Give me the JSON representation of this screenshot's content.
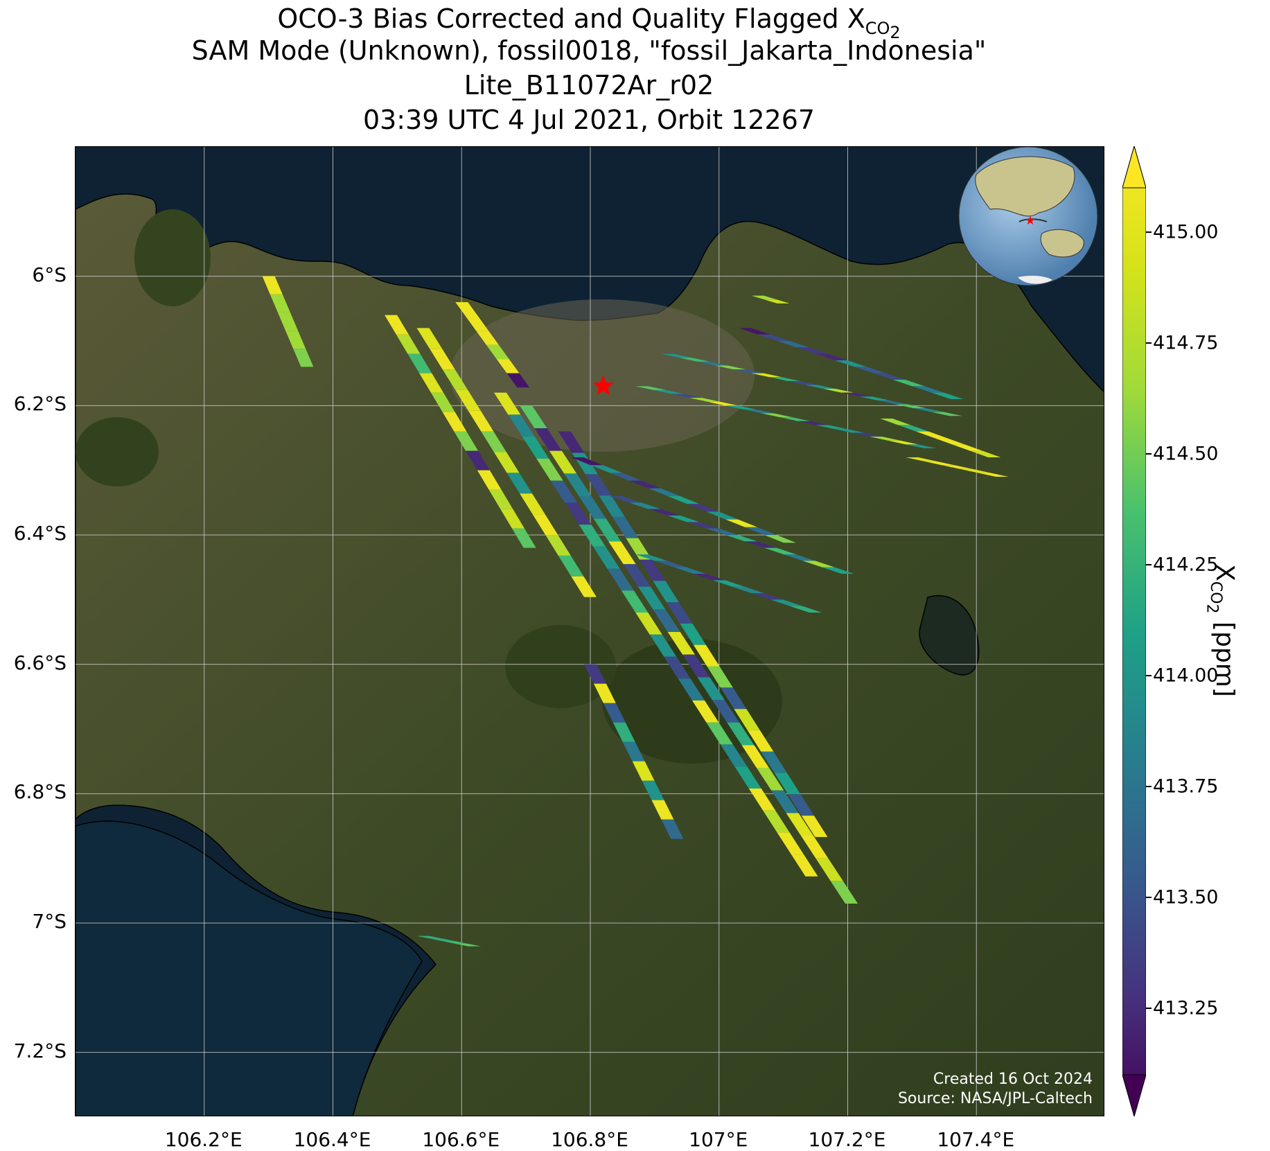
{
  "title": {
    "line1_prefix": "OCO-3 Bias Corrected and Quality Flagged X",
    "line1_sub": "CO",
    "line1_subsub": "2",
    "line2": "SAM Mode (Unknown), fossil0018, \"fossil_Jakarta_Indonesia\"",
    "line3": "Lite_B11072Ar_r02",
    "line4": "03:39 UTC 4 Jul 2021, Orbit 12267"
  },
  "map": {
    "lon_range": [
      106.0,
      107.6
    ],
    "lat_range": [
      -7.3,
      -5.8
    ],
    "lon_ticks": [
      {
        "v": 106.2,
        "label": "106.2°E"
      },
      {
        "v": 106.4,
        "label": "106.4°E"
      },
      {
        "v": 106.6,
        "label": "106.6°E"
      },
      {
        "v": 106.8,
        "label": "106.8°E"
      },
      {
        "v": 107.0,
        "label": "107°E"
      },
      {
        "v": 107.2,
        "label": "107.2°E"
      },
      {
        "v": 107.4,
        "label": "107.4°E"
      }
    ],
    "lat_ticks": [
      {
        "v": -6.0,
        "label": "6°S"
      },
      {
        "v": -6.2,
        "label": "6.2°S"
      },
      {
        "v": -6.4,
        "label": "6.4°S"
      },
      {
        "v": -6.6,
        "label": "6.6°S"
      },
      {
        "v": -6.8,
        "label": "6.8°S"
      },
      {
        "v": -7.0,
        "label": "7°S"
      },
      {
        "v": -7.2,
        "label": "7.2°S"
      }
    ],
    "target_marker": {
      "lon": 106.82,
      "lat": -6.17,
      "color": "#ff0000"
    },
    "grid": true
  },
  "credits": {
    "line1": "Created 16 Oct 2024",
    "line2": "Source: NASA/JPL-Caltech"
  },
  "colorbar": {
    "label_prefix": "X",
    "label_sub": "CO",
    "label_subsub": "2",
    "label_suffix": " [ppm]",
    "range": [
      413.1,
      415.1
    ],
    "colormap": "viridis",
    "extend": "both",
    "ticks": [
      "413.25",
      "413.50",
      "413.75",
      "414.00",
      "414.25",
      "414.50",
      "414.75",
      "415.00"
    ]
  },
  "chart_data": {
    "type": "heatmap",
    "note_units": "XCO2 ppm",
    "swaths": [
      {
        "lon0": 106.3,
        "lat0": -6.0,
        "dlon": 0.012,
        "dlat": -0.028,
        "values": [
          415.0,
          414.6,
          414.6,
          414.6,
          414.5
        ]
      },
      {
        "lon0": 106.49,
        "lat0": -6.06,
        "dlon": 0.018,
        "dlat": -0.03,
        "values": [
          415.0,
          414.7,
          414.3,
          414.9,
          414.6,
          415.0,
          414.5,
          413.3,
          415.0,
          414.7,
          414.8,
          414.4
        ]
      },
      {
        "lon0": 106.54,
        "lat0": -6.08,
        "dlon": 0.02,
        "dlat": -0.032,
        "values": [
          414.9,
          415.0,
          414.7,
          414.9,
          415.0,
          414.5,
          414.8,
          414.0,
          414.9,
          415.0,
          414.7,
          414.3,
          415.0
        ]
      },
      {
        "lon0": 106.6,
        "lat0": -6.04,
        "dlon": 0.016,
        "dlat": -0.022,
        "values": [
          415.0,
          415.0,
          415.0,
          414.6,
          415.0,
          413.2
        ]
      },
      {
        "lon0": 106.66,
        "lat0": -6.18,
        "dlon": 0.022,
        "dlat": -0.034,
        "values": [
          414.9,
          413.9,
          414.1,
          414.5,
          413.6,
          413.4,
          414.2,
          414.0,
          413.7,
          414.3,
          414.8,
          414.0,
          413.5,
          413.8,
          415.0,
          414.4,
          413.9,
          414.1,
          415.0,
          414.7,
          415.0,
          415.0
        ]
      },
      {
        "lon0": 106.7,
        "lat0": -6.2,
        "dlon": 0.023,
        "dlat": -0.035,
        "values": [
          414.4,
          413.3,
          414.8,
          413.9,
          413.8,
          414.2,
          415.0,
          413.5,
          414.0,
          413.7,
          414.9,
          413.4,
          414.0,
          413.6,
          414.2,
          415.0,
          414.6,
          413.8,
          414.9,
          415.0,
          414.8,
          414.5
        ]
      },
      {
        "lon0": 106.76,
        "lat0": -6.24,
        "dlon": 0.021,
        "dlat": -0.033,
        "values": [
          413.3,
          414.0,
          413.5,
          413.9,
          413.7,
          414.6,
          413.4,
          414.0,
          413.5,
          414.1,
          415.0,
          414.5,
          413.6,
          414.8,
          415.0,
          413.8,
          414.1,
          413.6,
          415.0
        ]
      },
      {
        "lon0": 106.8,
        "lat0": -6.6,
        "dlon": 0.015,
        "dlat": -0.03,
        "values": [
          413.4,
          415.0,
          413.6,
          414.2,
          413.8,
          414.9,
          414.0,
          415.0,
          413.7
        ]
      },
      {
        "lon0": 106.78,
        "lat0": -6.28,
        "dlon": 0.03,
        "dlat": -0.012,
        "values": [
          413.2,
          414.0,
          413.6,
          413.3,
          413.8,
          414.1,
          413.4,
          414.0,
          415.0,
          413.7,
          414.5
        ]
      },
      {
        "lon0": 106.84,
        "lat0": -6.34,
        "dlon": 0.03,
        "dlat": -0.01,
        "values": [
          413.5,
          413.9,
          413.3,
          414.1,
          413.4,
          413.7,
          414.2,
          413.3,
          414.3,
          413.8,
          414.6,
          414.1
        ]
      },
      {
        "lon0": 106.88,
        "lat0": -6.43,
        "dlon": 0.03,
        "dlat": -0.01,
        "values": [
          414.0,
          413.6,
          413.8,
          413.3,
          414.1,
          413.9,
          413.4,
          414.0,
          414.2
        ]
      },
      {
        "lon0": 106.88,
        "lat0": -6.17,
        "dlon": 0.028,
        "dlat": -0.006,
        "values": [
          414.4,
          414.0,
          413.5,
          414.6,
          415.0,
          414.1,
          413.8,
          414.5,
          414.3,
          413.3,
          414.1,
          414.0,
          413.4,
          414.6,
          414.9,
          414.0
        ]
      },
      {
        "lon0": 106.92,
        "lat0": -6.12,
        "dlon": 0.028,
        "dlat": -0.006,
        "values": [
          414.0,
          414.3,
          413.8,
          414.5,
          413.6,
          414.9,
          414.2,
          413.5,
          414.0,
          414.7,
          413.3,
          414.1,
          413.7,
          414.4,
          413.9,
          414.4
        ]
      },
      {
        "lon0": 107.04,
        "lat0": -6.08,
        "dlon": 0.03,
        "dlat": -0.01,
        "values": [
          413.2,
          413.5,
          413.7,
          413.4,
          413.3,
          414.0,
          413.6,
          413.5,
          414.3,
          413.8,
          414.1
        ]
      },
      {
        "lon0": 107.26,
        "lat0": -6.22,
        "dlon": 0.028,
        "dlat": -0.01,
        "values": [
          414.6,
          414.2,
          415.0,
          415.0,
          415.0,
          414.8
        ]
      },
      {
        "lon0": 107.3,
        "lat0": -6.28,
        "dlon": 0.028,
        "dlat": -0.006,
        "values": [
          414.9,
          415.0,
          415.0,
          414.9,
          415.0
        ]
      },
      {
        "lon0": 107.06,
        "lat0": -6.03,
        "dlon": 0.02,
        "dlat": -0.006,
        "values": [
          414.6,
          414.8
        ]
      },
      {
        "lon0": 106.54,
        "lat0": -7.02,
        "dlon": 0.02,
        "dlat": -0.004,
        "values": [
          414.2,
          414.2,
          414.3,
          414.4
        ]
      }
    ]
  }
}
